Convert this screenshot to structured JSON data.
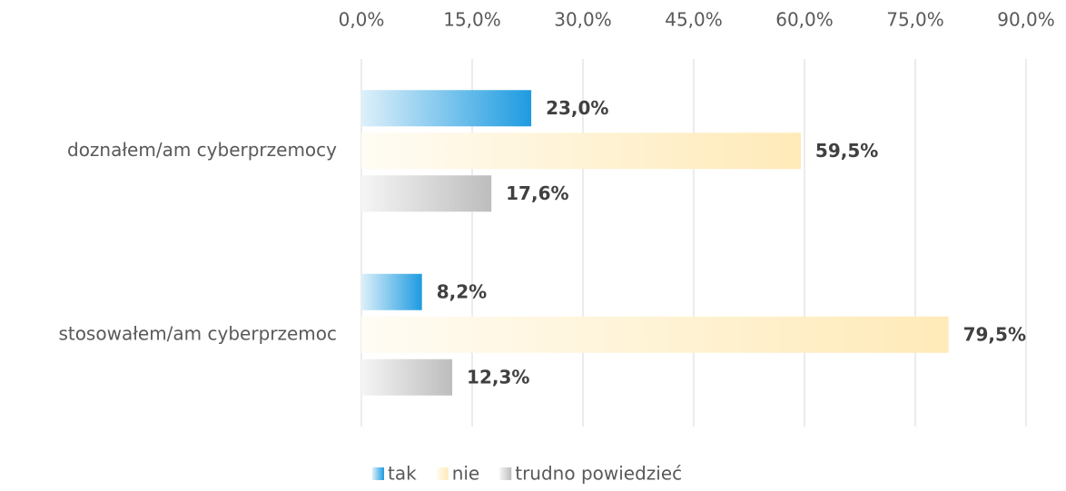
{
  "chart_data": {
    "type": "barh",
    "categories": [
      "doznałem/am cyberprzemocy",
      "stosowałem/am cyberprzemoc"
    ],
    "series": [
      {
        "name": "tak",
        "color": "#1e9be0",
        "values": [
          23.0,
          8.2
        ],
        "value_labels": [
          "23,0%",
          "8,2%"
        ]
      },
      {
        "name": "nie",
        "color": "#ffeab8",
        "values": [
          59.5,
          79.5
        ],
        "value_labels": [
          "59,5%",
          "79,5%"
        ]
      },
      {
        "name": "trudno powiedzieć",
        "color": "#bdbdbd",
        "values": [
          17.6,
          12.3
        ],
        "value_labels": [
          "17,6%",
          "12,3%"
        ]
      }
    ],
    "xlim": [
      0,
      90
    ],
    "xticks": [
      {
        "value": 0,
        "label": "0,0%"
      },
      {
        "value": 15,
        "label": "15,0%"
      },
      {
        "value": 30,
        "label": "30,0%"
      },
      {
        "value": 45,
        "label": "45,0%"
      },
      {
        "value": 60,
        "label": "60,0%"
      },
      {
        "value": 75,
        "label": "75,0%"
      },
      {
        "value": 90,
        "label": "90,0%"
      }
    ],
    "grid": true,
    "legend": "bottom"
  }
}
